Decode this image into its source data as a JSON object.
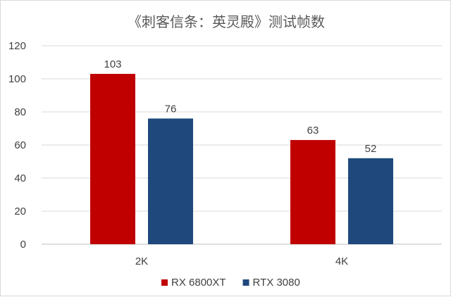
{
  "chart_data": {
    "type": "bar",
    "title": "《刺客信条：英灵殿》测试帧数",
    "categories": [
      "2K",
      "4K"
    ],
    "series": [
      {
        "name": "RX 6800XT",
        "color": "#c00000",
        "values": [
          103,
          63
        ]
      },
      {
        "name": "RTX 3080",
        "color": "#1f497d",
        "values": [
          76,
          52
        ]
      }
    ],
    "ylim": [
      0,
      120
    ],
    "yticks": [
      "0",
      "20",
      "40",
      "60",
      "80",
      "100",
      "120"
    ],
    "grid": true,
    "legend": "bottom"
  }
}
